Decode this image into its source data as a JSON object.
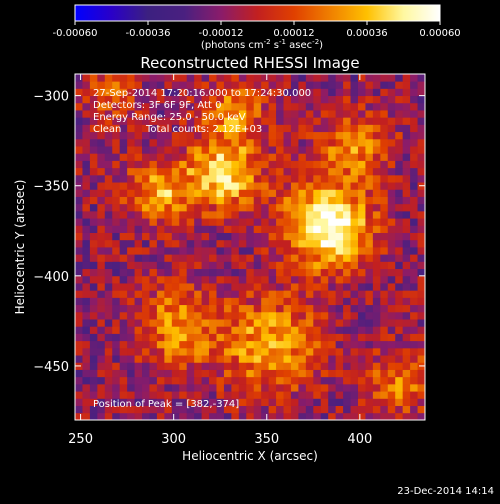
{
  "colorbar": {
    "ticks": [
      "-0.00060",
      "-0.00036",
      "-0.00012",
      "0.00012",
      "0.00036",
      "0.00060"
    ],
    "tick_values": [
      -0.0006,
      -0.00036,
      -0.00012,
      0.00012,
      0.00036,
      0.0006
    ],
    "units_prefix": "(photons cm",
    "units_exp1": "-2",
    "units_mid": " s",
    "units_exp2": "-1",
    "units_mid2": " asec",
    "units_exp3": "-2",
    "units_suffix": ")",
    "colors": [
      "#0000ff",
      "#2a00c8",
      "#3c2080",
      "#4a2080",
      "#8a1c6a",
      "#c22020",
      "#e04000",
      "#f08000",
      "#ffc000",
      "#fff8a0",
      "#ffffff"
    ]
  },
  "chart_data": {
    "type": "heatmap",
    "title": "Reconstructed RHESSI Image",
    "xlabel": "Heliocentric X (arcsec)",
    "ylabel": "Heliocentric Y (arcsec)",
    "xlim": [
      247,
      435
    ],
    "ylim": [
      -480,
      -288
    ],
    "x_ticks": [
      250,
      300,
      350,
      400
    ],
    "y_ticks": [
      -300,
      -350,
      -400,
      -450
    ],
    "x_tick_labels": [
      "250",
      "300",
      "350",
      "400"
    ],
    "y_tick_labels": [
      "−300",
      "−350",
      "−400",
      "−450"
    ],
    "peak": [
      382,
      -374
    ],
    "bright_regions": [
      {
        "x": 380,
        "y": -374,
        "intensity": 1.0,
        "spread": 16
      },
      {
        "x": 325,
        "y": -345,
        "intensity": 0.75,
        "spread": 14
      },
      {
        "x": 290,
        "y": -355,
        "intensity": 0.6,
        "spread": 12
      },
      {
        "x": 350,
        "y": -440,
        "intensity": 0.6,
        "spread": 18
      },
      {
        "x": 300,
        "y": -430,
        "intensity": 0.5,
        "spread": 16
      },
      {
        "x": 395,
        "y": -330,
        "intensity": 0.45,
        "spread": 14
      },
      {
        "x": 420,
        "y": -460,
        "intensity": 0.45,
        "spread": 12
      },
      {
        "x": 330,
        "y": -310,
        "intensity": 0.45,
        "spread": 12
      },
      {
        "x": 265,
        "y": -300,
        "intensity": 0.4,
        "spread": 10
      }
    ],
    "annotations": [
      "27-Sep-2014 17:20:16.000 to 17:24:30.000",
      "Detectors: 3F 6F 9F, Att 0",
      "Energy Range: 25.0 - 50.0 keV",
      "Clean",
      "Total counts: 2.12E+03",
      "Position of Peak = [382,-374]"
    ]
  },
  "timestamp": "23-Dec-2014 14:14"
}
